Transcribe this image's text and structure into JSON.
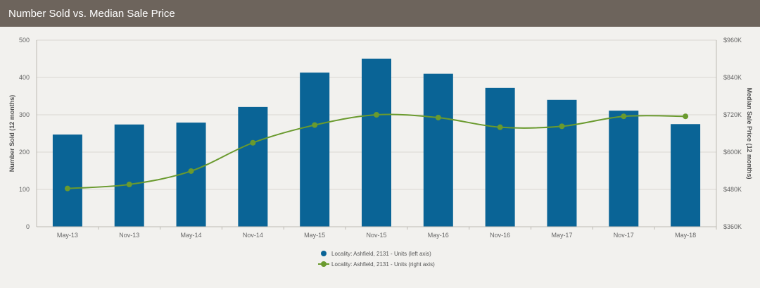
{
  "header": {
    "title": "Number Sold vs. Median Sale Price"
  },
  "colors": {
    "bar": "#0a6496",
    "line": "#6a9a2e",
    "grid": "#d9d7d2",
    "header_bg": "#6d645c"
  },
  "chart_data": {
    "type": "bar",
    "categories": [
      "May-13",
      "Nov-13",
      "May-14",
      "Nov-14",
      "May-15",
      "Nov-15",
      "May-16",
      "Nov-16",
      "May-17",
      "Nov-17",
      "May-18"
    ],
    "series": [
      {
        "name": "Locality: Ashfield, 2131 - Units (left axis)",
        "type": "bar",
        "axis": "left",
        "values": [
          247,
          274,
          279,
          321,
          413,
          450,
          410,
          372,
          340,
          311,
          275
        ]
      },
      {
        "name": "Locality: Ashfield, 2131 - Units (right axis)",
        "type": "line",
        "axis": "right",
        "values": [
          483000,
          496000,
          539000,
          630000,
          687000,
          720000,
          711000,
          680000,
          683000,
          715000,
          715000
        ]
      }
    ],
    "ylabel": "Number Sold (12 months)",
    "ylim": [
      0,
      500
    ],
    "yticks": [
      "0",
      "100",
      "200",
      "300",
      "400",
      "500"
    ],
    "y2label": "Median Sale Price (12 months)",
    "y2lim": [
      360000,
      960000
    ],
    "y2ticks": [
      "$360K",
      "$480K",
      "$600K",
      "$720K",
      "$840K",
      "$960K"
    ],
    "grid": true,
    "legend_position": "bottom-center"
  }
}
